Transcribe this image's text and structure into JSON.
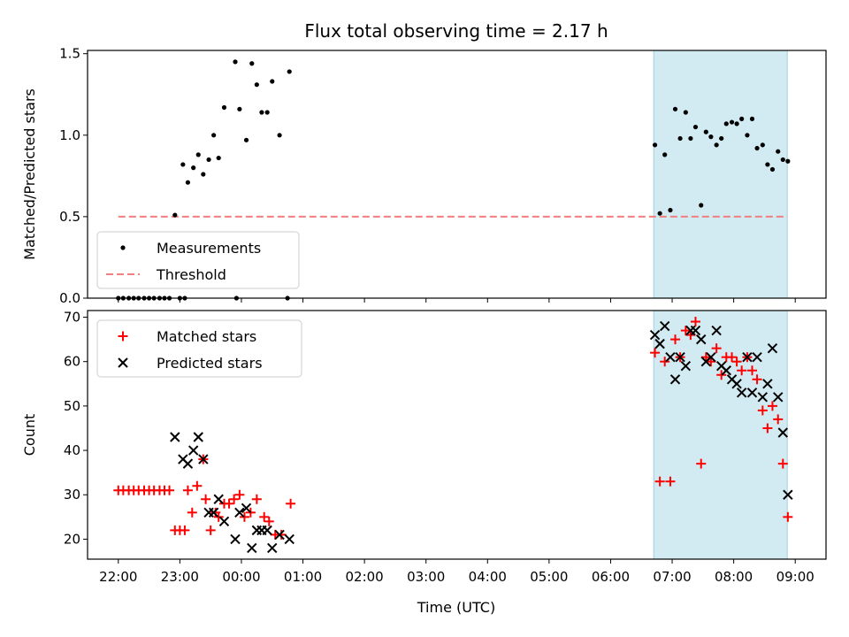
{
  "chart_data": {
    "title": "Flux total observing time = 2.17 h",
    "xlabel": "Time (UTC)",
    "x_unit": "hours since 00:00 UTC (negative = previous day)",
    "x_range": [
      -2.5,
      9.5
    ],
    "x_ticks": [
      {
        "x": -2,
        "label": "22:00"
      },
      {
        "x": -1,
        "label": "23:00"
      },
      {
        "x": 0,
        "label": "00:00"
      },
      {
        "x": 1,
        "label": "01:00"
      },
      {
        "x": 2,
        "label": "02:00"
      },
      {
        "x": 3,
        "label": "03:00"
      },
      {
        "x": 4,
        "label": "04:00"
      },
      {
        "x": 5,
        "label": "05:00"
      },
      {
        "x": 6,
        "label": "06:00"
      },
      {
        "x": 7,
        "label": "07:00"
      },
      {
        "x": 8,
        "label": "08:00"
      },
      {
        "x": 9,
        "label": "09:00"
      }
    ],
    "highlight_span": {
      "x_start": 6.7,
      "x_end": 8.87,
      "color": "#add8e6"
    },
    "panels": [
      {
        "type": "scatter",
        "ylabel": "Matched/Predicted stars",
        "ylim": [
          0,
          1.52
        ],
        "y_ticks": [
          {
            "v": 0,
            "label": "0.0"
          },
          {
            "v": 0.5,
            "label": "0.5"
          },
          {
            "v": 1.0,
            "label": "1.0"
          },
          {
            "v": 1.5,
            "label": "1.5"
          }
        ],
        "legend": {
          "position": "lower-left",
          "entries": [
            "Measurements",
            "Threshold"
          ]
        },
        "threshold": {
          "name": "Threshold",
          "y": 0.5,
          "x_start": -2.0,
          "x_end": 8.87,
          "color": "#f08080"
        },
        "series": [
          {
            "name": "Measurements",
            "marker": "dot",
            "color": "#000000",
            "points": [
              [
                -2.0,
                0
              ],
              [
                -1.92,
                0
              ],
              [
                -1.83,
                0
              ],
              [
                -1.75,
                0
              ],
              [
                -1.67,
                0
              ],
              [
                -1.58,
                0
              ],
              [
                -1.5,
                0
              ],
              [
                -1.42,
                0
              ],
              [
                -1.33,
                0
              ],
              [
                -1.25,
                0
              ],
              [
                -1.17,
                0
              ],
              [
                -1.0,
                0
              ],
              [
                -0.92,
                0
              ],
              [
                -0.08,
                0
              ],
              [
                0.75,
                0
              ],
              [
                -1.08,
                0.51
              ],
              [
                -0.95,
                0.82
              ],
              [
                -0.87,
                0.71
              ],
              [
                -0.78,
                0.8
              ],
              [
                -0.7,
                0.88
              ],
              [
                -0.62,
                0.76
              ],
              [
                -0.53,
                0.85
              ],
              [
                -0.45,
                1.0
              ],
              [
                -0.37,
                0.86
              ],
              [
                -0.28,
                1.17
              ],
              [
                -0.1,
                1.45
              ],
              [
                -0.03,
                1.16
              ],
              [
                0.08,
                0.97
              ],
              [
                0.17,
                1.44
              ],
              [
                0.25,
                1.31
              ],
              [
                0.33,
                1.14
              ],
              [
                0.42,
                1.14
              ],
              [
                0.5,
                1.33
              ],
              [
                0.62,
                1.0
              ],
              [
                0.78,
                1.39
              ],
              [
                6.72,
                0.94
              ],
              [
                6.8,
                0.52
              ],
              [
                6.88,
                0.88
              ],
              [
                6.97,
                0.54
              ],
              [
                7.05,
                1.16
              ],
              [
                7.13,
                0.98
              ],
              [
                7.22,
                1.14
              ],
              [
                7.3,
                0.98
              ],
              [
                7.38,
                1.05
              ],
              [
                7.47,
                0.57
              ],
              [
                7.55,
                1.02
              ],
              [
                7.63,
                0.99
              ],
              [
                7.72,
                0.94
              ],
              [
                7.8,
                0.98
              ],
              [
                7.88,
                1.07
              ],
              [
                7.97,
                1.08
              ],
              [
                8.05,
                1.07
              ],
              [
                8.13,
                1.1
              ],
              [
                8.22,
                1.0
              ],
              [
                8.3,
                1.1
              ],
              [
                8.38,
                0.92
              ],
              [
                8.47,
                0.94
              ],
              [
                8.55,
                0.82
              ],
              [
                8.63,
                0.79
              ],
              [
                8.72,
                0.9
              ],
              [
                8.8,
                0.85
              ],
              [
                8.88,
                0.84
              ]
            ]
          }
        ]
      },
      {
        "type": "scatter",
        "ylabel": "Count",
        "ylim": [
          15.5,
          71.5
        ],
        "y_ticks": [
          {
            "v": 20,
            "label": "20"
          },
          {
            "v": 30,
            "label": "30"
          },
          {
            "v": 40,
            "label": "40"
          },
          {
            "v": 50,
            "label": "50"
          },
          {
            "v": 60,
            "label": "60"
          },
          {
            "v": 70,
            "label": "70"
          }
        ],
        "legend": {
          "position": "upper-left",
          "entries": [
            "Matched stars",
            "Predicted stars"
          ]
        },
        "series": [
          {
            "name": "Matched stars",
            "marker": "plus",
            "color": "#ff0000",
            "points": [
              [
                -2.0,
                31
              ],
              [
                -1.92,
                31
              ],
              [
                -1.83,
                31
              ],
              [
                -1.75,
                31
              ],
              [
                -1.67,
                31
              ],
              [
                -1.58,
                31
              ],
              [
                -1.5,
                31
              ],
              [
                -1.42,
                31
              ],
              [
                -1.33,
                31
              ],
              [
                -1.25,
                31
              ],
              [
                -1.17,
                31
              ],
              [
                -1.08,
                22
              ],
              [
                -1.0,
                22
              ],
              [
                -0.92,
                22
              ],
              [
                -0.87,
                31
              ],
              [
                -0.8,
                26
              ],
              [
                -0.72,
                32
              ],
              [
                -0.62,
                38
              ],
              [
                -0.58,
                29
              ],
              [
                -0.5,
                22
              ],
              [
                -0.42,
                26
              ],
              [
                -0.37,
                25
              ],
              [
                -0.28,
                28
              ],
              [
                -0.2,
                28
              ],
              [
                -0.12,
                29
              ],
              [
                -0.03,
                30
              ],
              [
                0.05,
                25
              ],
              [
                0.15,
                26
              ],
              [
                0.25,
                29
              ],
              [
                0.37,
                25
              ],
              [
                0.45,
                24
              ],
              [
                0.55,
                21
              ],
              [
                0.65,
                21
              ],
              [
                0.8,
                28
              ],
              [
                6.72,
                62
              ],
              [
                6.8,
                33
              ],
              [
                6.88,
                60
              ],
              [
                6.97,
                33
              ],
              [
                7.05,
                65
              ],
              [
                7.13,
                61
              ],
              [
                7.22,
                67
              ],
              [
                7.3,
                66
              ],
              [
                7.38,
                69
              ],
              [
                7.47,
                37
              ],
              [
                7.55,
                61
              ],
              [
                7.63,
                60
              ],
              [
                7.72,
                63
              ],
              [
                7.8,
                57
              ],
              [
                7.88,
                61
              ],
              [
                7.97,
                61
              ],
              [
                8.05,
                60
              ],
              [
                8.13,
                58
              ],
              [
                8.22,
                61
              ],
              [
                8.3,
                58
              ],
              [
                8.38,
                56
              ],
              [
                8.47,
                49
              ],
              [
                8.55,
                45
              ],
              [
                8.63,
                50
              ],
              [
                8.72,
                47
              ],
              [
                8.8,
                37
              ],
              [
                8.88,
                25
              ]
            ]
          },
          {
            "name": "Predicted stars",
            "marker": "x",
            "color": "#000000",
            "points": [
              [
                -1.08,
                43
              ],
              [
                -0.95,
                38
              ],
              [
                -0.87,
                37
              ],
              [
                -0.78,
                40
              ],
              [
                -0.7,
                43
              ],
              [
                -0.62,
                38
              ],
              [
                -0.53,
                26
              ],
              [
                -0.45,
                26
              ],
              [
                -0.37,
                29
              ],
              [
                -0.28,
                24
              ],
              [
                -0.1,
                20
              ],
              [
                -0.03,
                26
              ],
              [
                0.08,
                27
              ],
              [
                0.17,
                18
              ],
              [
                0.25,
                22
              ],
              [
                0.33,
                22
              ],
              [
                0.42,
                22
              ],
              [
                0.5,
                18
              ],
              [
                0.62,
                21
              ],
              [
                0.78,
                20
              ],
              [
                6.72,
                66
              ],
              [
                6.8,
                64
              ],
              [
                6.88,
                68
              ],
              [
                6.97,
                61
              ],
              [
                7.05,
                56
              ],
              [
                7.13,
                61
              ],
              [
                7.22,
                59
              ],
              [
                7.3,
                67
              ],
              [
                7.38,
                67
              ],
              [
                7.47,
                65
              ],
              [
                7.55,
                60
              ],
              [
                7.63,
                61
              ],
              [
                7.72,
                67
              ],
              [
                7.8,
                59
              ],
              [
                7.88,
                58
              ],
              [
                7.97,
                56
              ],
              [
                8.05,
                55
              ],
              [
                8.13,
                53
              ],
              [
                8.22,
                61
              ],
              [
                8.3,
                53
              ],
              [
                8.38,
                61
              ],
              [
                8.47,
                52
              ],
              [
                8.55,
                55
              ],
              [
                8.63,
                63
              ],
              [
                8.72,
                52
              ],
              [
                8.8,
                44
              ],
              [
                8.88,
                30
              ]
            ]
          }
        ]
      }
    ]
  }
}
